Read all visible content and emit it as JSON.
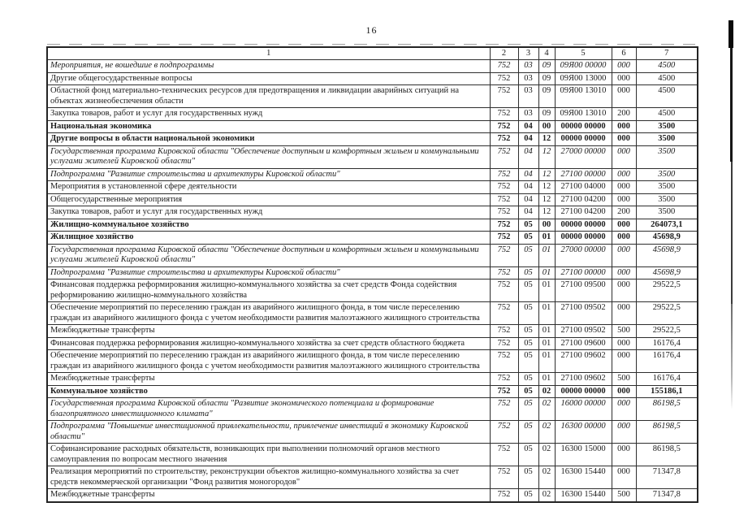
{
  "page": {
    "number": "16"
  },
  "colors": {
    "text": "#1b1b1b",
    "border": "#2e2e2e",
    "background": "#ffffff"
  },
  "table": {
    "header": [
      "1",
      "2",
      "3",
      "4",
      "5",
      "6",
      "7"
    ],
    "rows": [
      {
        "style": "italic",
        "name": "Мероприятия, не вошедшие в подпрограммы",
        "c2": "752",
        "c3": "03",
        "c4": "09",
        "c5": "09Я00 00000",
        "c6": "000",
        "c7": "4500"
      },
      {
        "style": "normal",
        "name": "Другие общегосударственные вопросы",
        "c2": "752",
        "c3": "03",
        "c4": "09",
        "c5": "09Я00 13000",
        "c6": "000",
        "c7": "4500"
      },
      {
        "style": "normal",
        "name": "Областной фонд материально-технических ресурсов для предотвращения и ликвидации аварийных ситуаций на объектах жизнеобеспечения области",
        "c2": "752",
        "c3": "03",
        "c4": "09",
        "c5": "09Я00 13010",
        "c6": "000",
        "c7": "4500"
      },
      {
        "style": "normal",
        "name": "Закупка товаров, работ и услуг для государственных нужд",
        "c2": "752",
        "c3": "03",
        "c4": "09",
        "c5": "09Я00 13010",
        "c6": "200",
        "c7": "4500"
      },
      {
        "style": "bold",
        "name": "Национальная экономика",
        "c2": "752",
        "c3": "04",
        "c4": "00",
        "c5": "00000 00000",
        "c6": "000",
        "c7": "3500"
      },
      {
        "style": "bold",
        "name": "Другие вопросы в области национальной экономики",
        "c2": "752",
        "c3": "04",
        "c4": "12",
        "c5": "00000 00000",
        "c6": "000",
        "c7": "3500"
      },
      {
        "style": "italic",
        "name": "Государственная программа Кировской области \"Обеспечение доступным и комфортным жильем и коммунальными услугами жителей Кировской области\"",
        "c2": "752",
        "c3": "04",
        "c4": "12",
        "c5": "27000 00000",
        "c6": "000",
        "c7": "3500"
      },
      {
        "style": "italic",
        "name": "Подпрограмма \"Развитие строительства и архитектуры Кировской области\"",
        "c2": "752",
        "c3": "04",
        "c4": "12",
        "c5": "27100 00000",
        "c6": "000",
        "c7": "3500"
      },
      {
        "style": "normal",
        "name": "Мероприятия в установленной сфере деятельности",
        "c2": "752",
        "c3": "04",
        "c4": "12",
        "c5": "27100 04000",
        "c6": "000",
        "c7": "3500"
      },
      {
        "style": "normal",
        "name": "Общегосударственные мероприятия",
        "c2": "752",
        "c3": "04",
        "c4": "12",
        "c5": "27100 04200",
        "c6": "000",
        "c7": "3500"
      },
      {
        "style": "normal",
        "name": "Закупка товаров, работ и услуг для государственных нужд",
        "c2": "752",
        "c3": "04",
        "c4": "12",
        "c5": "27100 04200",
        "c6": "200",
        "c7": "3500"
      },
      {
        "style": "bold",
        "name": "Жилищно-коммунальное хозяйство",
        "c2": "752",
        "c3": "05",
        "c4": "00",
        "c5": "00000 00000",
        "c6": "000",
        "c7": "264073,1"
      },
      {
        "style": "bold",
        "name": "Жилищное хозяйство",
        "c2": "752",
        "c3": "05",
        "c4": "01",
        "c5": "00000 00000",
        "c6": "000",
        "c7": "45698,9"
      },
      {
        "style": "italic",
        "name": "Государственная программа Кировской области \"Обеспечение доступным и комфортным жильем и коммунальными услугами жителей Кировской области\"",
        "c2": "752",
        "c3": "05",
        "c4": "01",
        "c5": "27000 00000",
        "c6": "000",
        "c7": "45698,9"
      },
      {
        "style": "italic",
        "name": "Подпрограмма \"Развитие строительства и архитектуры Кировской области\"",
        "c2": "752",
        "c3": "05",
        "c4": "01",
        "c5": "27100 00000",
        "c6": "000",
        "c7": "45698,9"
      },
      {
        "style": "normal",
        "name": "Финансовая поддержка реформирования жилищно-коммунального хозяйства за счет средств Фонда содействия реформированию жилищно-коммунального хозяйства",
        "c2": "752",
        "c3": "05",
        "c4": "01",
        "c5": "27100 09500",
        "c6": "000",
        "c7": "29522,5"
      },
      {
        "style": "normal",
        "name": "Обеспечение мероприятий по переселению граждан из аварийного жилищного фонда, в том числе переселению граждан из аварийного жилищного фонда с учетом необходимости развития малоэтажного жилищного строительства",
        "c2": "752",
        "c3": "05",
        "c4": "01",
        "c5": "27100 09502",
        "c6": "000",
        "c7": "29522,5"
      },
      {
        "style": "normal",
        "name": "Межбюджетные трансферты",
        "c2": "752",
        "c3": "05",
        "c4": "01",
        "c5": "27100 09502",
        "c6": "500",
        "c7": "29522,5"
      },
      {
        "style": "normal",
        "name": "Финансовая поддержка реформирования жилищно-коммунального хозяйства за счет средств областного бюджета",
        "c2": "752",
        "c3": "05",
        "c4": "01",
        "c5": "27100 09600",
        "c6": "000",
        "c7": "16176,4"
      },
      {
        "style": "normal",
        "name": "Обеспечение мероприятий по переселению граждан из аварийного жилищного фонда, в том числе переселению граждан из аварийного жилищного фонда с учетом необходимости развития малоэтажного жилищного строительства",
        "c2": "752",
        "c3": "05",
        "c4": "01",
        "c5": "27100 09602",
        "c6": "000",
        "c7": "16176,4"
      },
      {
        "style": "normal",
        "name": "Межбюджетные трансферты",
        "c2": "752",
        "c3": "05",
        "c4": "01",
        "c5": "27100 09602",
        "c6": "500",
        "c7": "16176,4"
      },
      {
        "style": "bold",
        "name": "Коммунальное хозяйство",
        "c2": "752",
        "c3": "05",
        "c4": "02",
        "c5": "00000 00000",
        "c6": "000",
        "c7": "155186,1"
      },
      {
        "style": "italic",
        "name": "Государственная программа Кировской области \"Развитие экономического потенциала и формирование благоприятного инвестиционного климата\"",
        "c2": "752",
        "c3": "05",
        "c4": "02",
        "c5": "16000 00000",
        "c6": "000",
        "c7": "86198,5"
      },
      {
        "style": "italic",
        "name": "Подпрограмма \"Повышение инвестиционной привлекательности, привлечение инвестиций в экономику Кировской области\"",
        "c2": "752",
        "c3": "05",
        "c4": "02",
        "c5": "16300 00000",
        "c6": "000",
        "c7": "86198,5"
      },
      {
        "style": "normal",
        "name": "Софинансирование расходных обязательств, возникающих при выполнении полномочий органов местного самоуправления по вопросам местного значения",
        "c2": "752",
        "c3": "05",
        "c4": "02",
        "c5": "16300 15000",
        "c6": "000",
        "c7": "86198,5"
      },
      {
        "style": "normal",
        "name": "Реализация мероприятий по строительству, реконструкции объектов жилищно-коммунального хозяйства за счет средств некоммерческой организации \"Фонд развития моногородов\"",
        "c2": "752",
        "c3": "05",
        "c4": "02",
        "c5": "16300 15440",
        "c6": "000",
        "c7": "71347,8"
      },
      {
        "style": "normal",
        "name": "Межбюджетные трансферты",
        "c2": "752",
        "c3": "05",
        "c4": "02",
        "c5": "16300 15440",
        "c6": "500",
        "c7": "71347,8"
      }
    ]
  }
}
